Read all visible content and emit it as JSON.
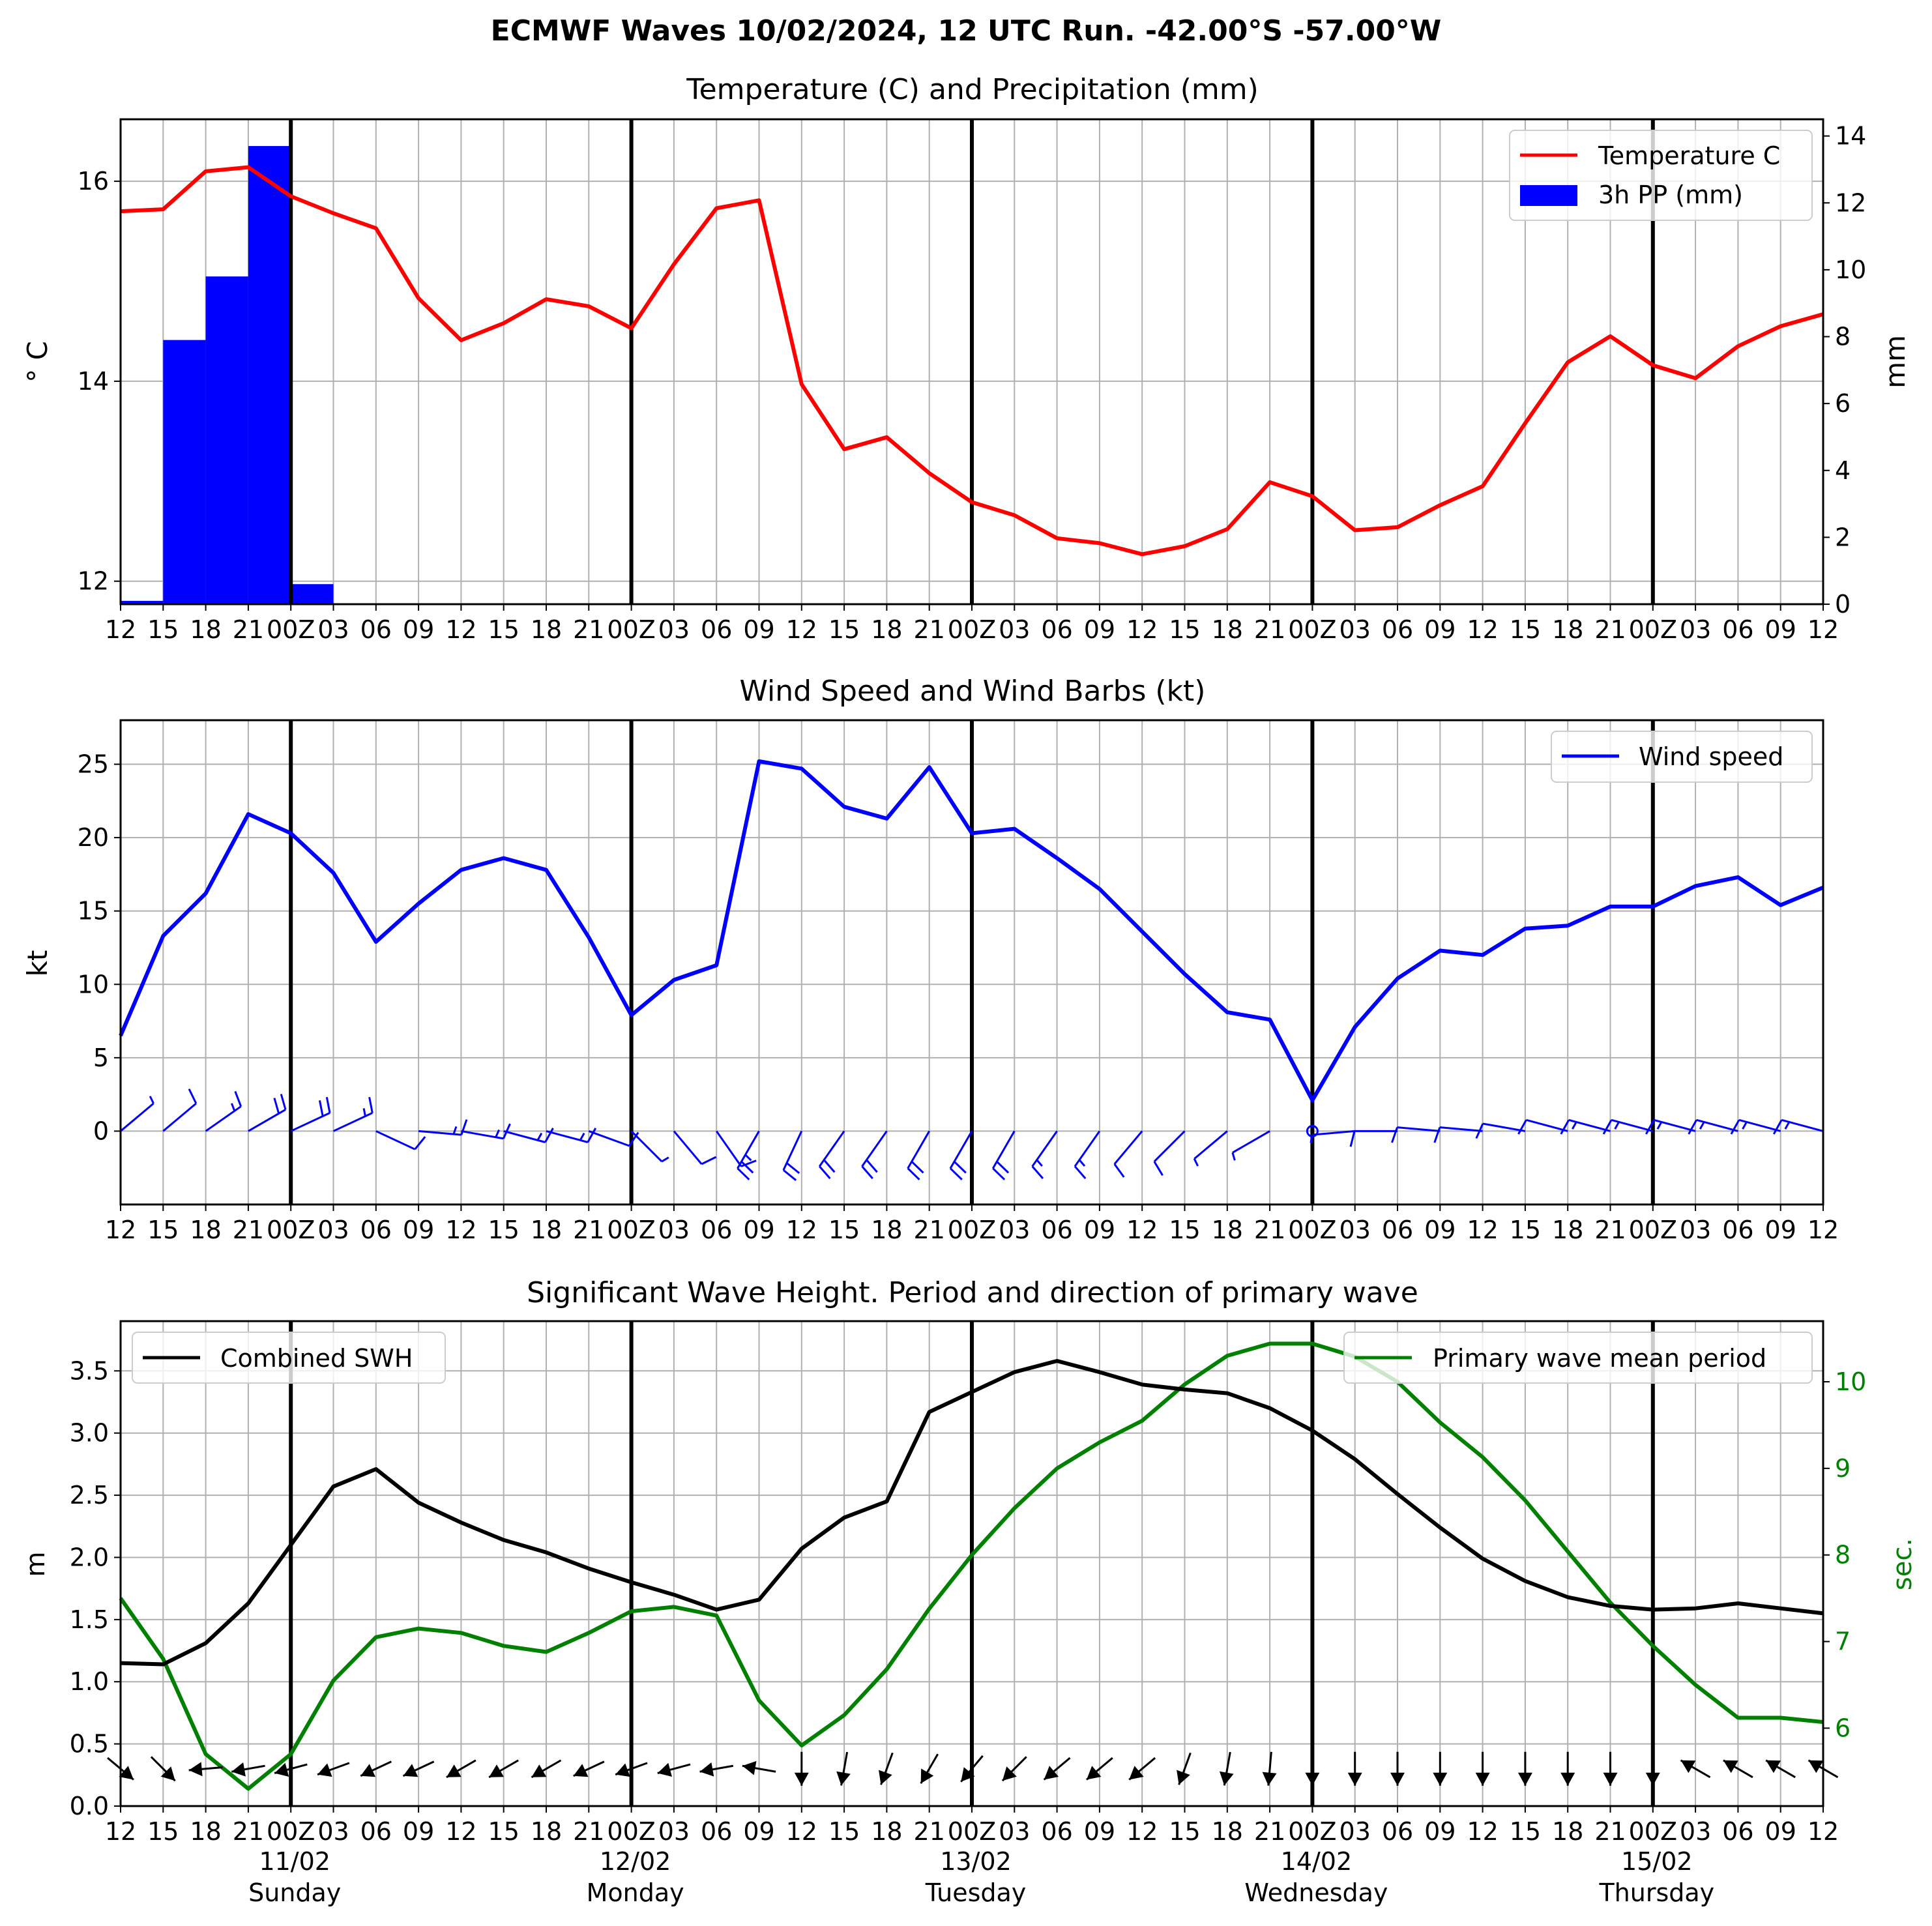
{
  "figure": {
    "title": "ECMWF Waves 10/02/2024, 12 UTC Run. -42.00°S -57.00°W"
  },
  "x_ticks": [
    "12",
    "15",
    "18",
    "21",
    "00Z",
    "03",
    "06",
    "09",
    "12",
    "15",
    "18",
    "21",
    "00Z",
    "03",
    "06",
    "09",
    "12",
    "15",
    "18",
    "21",
    "00Z",
    "03",
    "06",
    "09",
    "12",
    "15",
    "18",
    "21",
    "00Z",
    "03",
    "06",
    "09",
    "12",
    "15",
    "18",
    "21",
    "00Z",
    "03",
    "06",
    "09",
    "12"
  ],
  "day_labels": [
    {
      "date": "11/02",
      "day": "Sunday"
    },
    {
      "date": "12/02",
      "day": "Monday"
    },
    {
      "date": "13/02",
      "day": "Tuesday"
    },
    {
      "date": "14/02",
      "day": "Wednesday"
    },
    {
      "date": "15/02",
      "day": "Thursday"
    }
  ],
  "chart_data": [
    {
      "type": "line",
      "title": "Temperature (C) and Precipitation (mm)",
      "ylabel": "° C",
      "ylabel_right": "mm",
      "ylim": [
        11.77,
        16.62
      ],
      "ylim_right": [
        0,
        14.5
      ],
      "yticks": [
        "12",
        "14",
        "16"
      ],
      "yticks_right": [
        "0",
        "2",
        "4",
        "6",
        "8",
        "10",
        "12",
        "14"
      ],
      "legend": "top-right",
      "grid": true,
      "series": [
        {
          "name": "Temperature C",
          "color": "#ff0000",
          "values": [
            15.7,
            15.72,
            16.1,
            16.14,
            15.85,
            15.68,
            15.53,
            14.83,
            14.41,
            14.58,
            14.82,
            14.75,
            14.53,
            15.17,
            15.73,
            15.81,
            13.97,
            13.32,
            13.44,
            13.08,
            12.79,
            12.66,
            12.43,
            12.38,
            12.27,
            12.35,
            12.52,
            12.99,
            12.85,
            12.51,
            12.54,
            12.76,
            12.95,
            13.58,
            14.19,
            14.45,
            14.16,
            14.03,
            14.35,
            14.55,
            14.67
          ]
        }
      ],
      "bar_series": {
        "name": "3h PP (mm)",
        "color": "#0000ff",
        "values": [
          0,
          0.1,
          7.9,
          9.8,
          13.7,
          0.6,
          0,
          0,
          0,
          0,
          0,
          0,
          0,
          0,
          0,
          0,
          0,
          0,
          0,
          0,
          0,
          0,
          0,
          0,
          0,
          0,
          0,
          0,
          0,
          0,
          0,
          0,
          0,
          0,
          0,
          0,
          0,
          0,
          0,
          0,
          0
        ]
      }
    },
    {
      "type": "line",
      "title": "Wind Speed and Wind Barbs (kt)",
      "ylabel": "kt",
      "ylim": [
        -5,
        28
      ],
      "yticks": [
        "0",
        "5",
        "10",
        "15",
        "20",
        "25"
      ],
      "legend": "top-right",
      "grid": true,
      "series": [
        {
          "name": "Wind speed",
          "color": "#0000ff",
          "values": [
            6.5,
            13.3,
            16.2,
            21.6,
            20.3,
            17.6,
            12.9,
            15.5,
            17.8,
            18.6,
            17.8,
            13.2,
            7.9,
            10.3,
            11.3,
            25.2,
            24.7,
            22.1,
            21.3,
            24.8,
            20.3,
            20.6,
            18.6,
            16.5,
            13.6,
            10.7,
            8.1,
            7.6,
            2.1,
            7.1,
            10.4,
            12.3,
            12.0,
            13.8,
            14.0,
            15.3,
            15.3,
            16.7,
            17.3,
            15.4,
            16.6
          ]
        }
      ],
      "barb_directions_deg": [
        50,
        50,
        55,
        60,
        65,
        65,
        115,
        95,
        100,
        105,
        105,
        110,
        135,
        140,
        145,
        210,
        205,
        215,
        215,
        210,
        210,
        210,
        215,
        215,
        220,
        225,
        230,
        240,
        0,
        265,
        270,
        275,
        275,
        280,
        285,
        285,
        285,
        285,
        285,
        285,
        285
      ]
    },
    {
      "type": "line",
      "title": "Significant Wave Height. Period and direction of primary wave",
      "ylabel": "m",
      "ylabel_right": "sec.",
      "ylim": [
        0,
        3.9
      ],
      "ylim_right": [
        5.1,
        10.7
      ],
      "yticks": [
        "0.0",
        "0.5",
        "1.0",
        "1.5",
        "2.0",
        "2.5",
        "3.0",
        "3.5"
      ],
      "yticks_right": [
        "6",
        "7",
        "8",
        "9",
        "10"
      ],
      "grid": true,
      "series": [
        {
          "name": "Combined SWH",
          "color": "#000000",
          "legend": "top-left",
          "values": [
            1.15,
            1.14,
            1.31,
            1.63,
            2.1,
            2.57,
            2.71,
            2.44,
            2.28,
            2.14,
            2.04,
            1.91,
            1.8,
            1.7,
            1.58,
            1.66,
            2.07,
            2.32,
            2.45,
            3.17,
            3.33,
            3.49,
            3.58,
            3.49,
            3.39,
            3.35,
            3.32,
            3.2,
            3.02,
            2.79,
            2.51,
            2.24,
            1.99,
            1.81,
            1.68,
            1.61,
            1.58,
            1.59,
            1.63,
            1.59,
            1.55
          ]
        },
        {
          "name": "Primary wave mean period",
          "color": "#008000",
          "legend": "top-right",
          "values": [
            7.5,
            6.8,
            5.7,
            5.3,
            5.7,
            6.55,
            7.05,
            7.15,
            7.1,
            6.95,
            6.88,
            7.1,
            7.35,
            7.4,
            7.3,
            6.32,
            5.8,
            6.15,
            6.68,
            7.38,
            8.0,
            8.54,
            9.0,
            9.3,
            9.55,
            9.97,
            10.3,
            10.44,
            10.44,
            10.29,
            10.0,
            9.53,
            9.13,
            8.63,
            8.04,
            7.45,
            6.95,
            6.5,
            6.12,
            6.12,
            6.07
          ]
        }
      ],
      "direction_arrows_deg": [
        130,
        135,
        265,
        260,
        255,
        250,
        245,
        245,
        240,
        240,
        240,
        245,
        250,
        255,
        260,
        280,
        180,
        190,
        200,
        210,
        220,
        225,
        230,
        230,
        230,
        200,
        190,
        185,
        180,
        180,
        180,
        180,
        180,
        180,
        180,
        180,
        180,
        300,
        300,
        300,
        300
      ]
    }
  ]
}
